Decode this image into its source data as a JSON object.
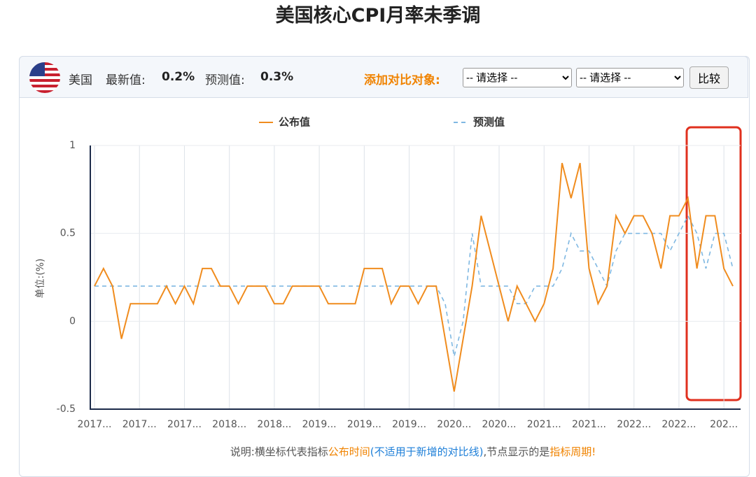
{
  "header": {
    "title": "美国核心CPI月率未季调"
  },
  "toolbar": {
    "country": "美国",
    "latest_label": "最新值:",
    "latest_value": "0.2%",
    "forecast_label": "预测值:",
    "forecast_value": "0.3%",
    "compare_label": "添加对比对象:",
    "select_1": "-- 请选择 --",
    "select_2": "-- 请选择 --",
    "button": "比较"
  },
  "chart_data": {
    "type": "line",
    "y_label": "单位:(%)",
    "categories": [
      "2017...",
      null,
      null,
      null,
      null,
      "2017...",
      null,
      null,
      null,
      null,
      "2017...",
      null,
      null,
      null,
      null,
      "2018...",
      null,
      null,
      null,
      null,
      "2018...",
      null,
      null,
      null,
      null,
      "2019...",
      null,
      null,
      null,
      null,
      "2019...",
      null,
      null,
      null,
      null,
      "2019...",
      null,
      null,
      null,
      null,
      "2020...",
      null,
      null,
      null,
      null,
      "2020...",
      null,
      null,
      null,
      null,
      "2021...",
      null,
      null,
      null,
      null,
      "2021...",
      null,
      null,
      null,
      null,
      "2022...",
      null,
      null,
      null,
      null,
      "2022...",
      null,
      null,
      null,
      null,
      "202...",
      null
    ],
    "series": [
      {
        "name": "公布值",
        "color": "#f08c1e",
        "dash": false,
        "values": [
          0.2,
          0.3,
          0.2,
          -0.1,
          0.1,
          0.1,
          0.1,
          0.1,
          0.2,
          0.1,
          0.2,
          0.1,
          0.3,
          0.3,
          0.2,
          0.2,
          0.1,
          0.2,
          0.2,
          0.2,
          0.1,
          0.1,
          0.2,
          0.2,
          0.2,
          0.2,
          0.1,
          0.1,
          0.1,
          0.1,
          0.3,
          0.3,
          0.3,
          0.1,
          0.2,
          0.2,
          0.1,
          0.2,
          0.2,
          -0.1,
          -0.4,
          -0.1,
          0.2,
          0.6,
          0.4,
          0.2,
          0.0,
          0.2,
          0.1,
          0.0,
          0.1,
          0.3,
          0.9,
          0.7,
          0.9,
          0.3,
          0.1,
          0.2,
          0.6,
          0.5,
          0.6,
          0.6,
          0.5,
          0.3,
          0.6,
          0.6,
          0.7,
          0.3,
          0.6,
          0.6,
          0.3,
          0.2
        ]
      },
      {
        "name": "预测值",
        "color": "#7fb8e2",
        "dash": true,
        "values": [
          0.2,
          0.2,
          0.2,
          0.2,
          0.2,
          0.2,
          0.2,
          0.2,
          0.2,
          0.2,
          0.2,
          0.2,
          0.2,
          0.2,
          0.2,
          0.2,
          0.2,
          0.2,
          0.2,
          0.2,
          0.2,
          0.2,
          0.2,
          0.2,
          0.2,
          0.2,
          0.2,
          0.2,
          0.2,
          0.2,
          0.2,
          0.2,
          0.2,
          0.2,
          0.2,
          0.2,
          0.2,
          0.2,
          0.2,
          0.1,
          -0.2,
          0.0,
          0.5,
          0.2,
          0.2,
          0.2,
          0.2,
          0.1,
          0.1,
          0.2,
          0.2,
          0.2,
          0.3,
          0.5,
          0.4,
          0.4,
          0.3,
          0.2,
          0.4,
          0.5,
          0.5,
          0.5,
          0.5,
          0.5,
          0.4,
          0.5,
          0.6,
          0.5,
          0.3,
          0.5,
          0.5,
          0.3
        ]
      }
    ],
    "ylim": [
      -0.5,
      1
    ],
    "yticks": [
      -0.5,
      0,
      0.5,
      1
    ],
    "grid": true
  },
  "footnote": [
    "说明:横坐标代表指标",
    "公布时间",
    "(不适用于新增的对比线)",
    ",节点显示的是",
    "指标周期!"
  ]
}
